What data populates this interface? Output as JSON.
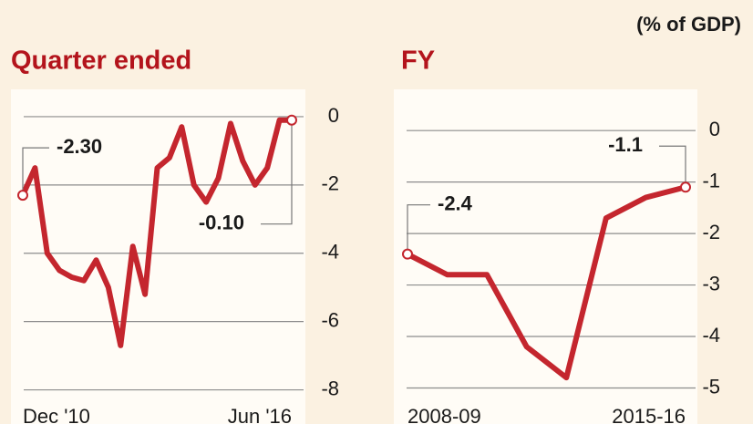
{
  "unit_note": "(% of GDP)",
  "chart_data": [
    {
      "type": "line",
      "title": "Quarter ended",
      "categories": [
        "Dec '10",
        null,
        null,
        null,
        null,
        null,
        null,
        null,
        null,
        null,
        null,
        null,
        null,
        null,
        null,
        null,
        null,
        null,
        null,
        null,
        null,
        null,
        "Jun '16"
      ],
      "values": [
        -2.3,
        -1.5,
        -4.0,
        -4.5,
        -4.7,
        -4.8,
        -4.2,
        -5.0,
        -6.7,
        -3.8,
        -5.2,
        -1.5,
        -1.2,
        -0.3,
        -2.0,
        -2.5,
        -1.8,
        -0.2,
        -1.3,
        -2.0,
        -1.5,
        -0.1,
        -0.1
      ],
      "value_labels": [
        "-2.30",
        null,
        null,
        null,
        null,
        null,
        null,
        null,
        null,
        null,
        null,
        null,
        null,
        null,
        null,
        null,
        null,
        null,
        null,
        null,
        null,
        null,
        "-0.10"
      ],
      "color": "#c4262e",
      "ylim": [
        -9,
        0.8
      ],
      "yticks": [
        0,
        -2,
        -4,
        -6,
        -8
      ],
      "grid": true
    },
    {
      "type": "line",
      "title": "FY",
      "categories": [
        "2008-09",
        null,
        null,
        null,
        null,
        null,
        null,
        "2015-16"
      ],
      "values": [
        -2.4,
        -2.8,
        -2.8,
        -4.2,
        -4.8,
        -1.7,
        -1.3,
        -1.1
      ],
      "value_labels": [
        "-2.4",
        null,
        null,
        null,
        null,
        null,
        null,
        "-1.1"
      ],
      "color": "#c4262e",
      "ylim": [
        -5.7,
        0.8
      ],
      "yticks": [
        0,
        -1,
        -2,
        -3,
        -4,
        -5
      ],
      "grid": true
    }
  ]
}
